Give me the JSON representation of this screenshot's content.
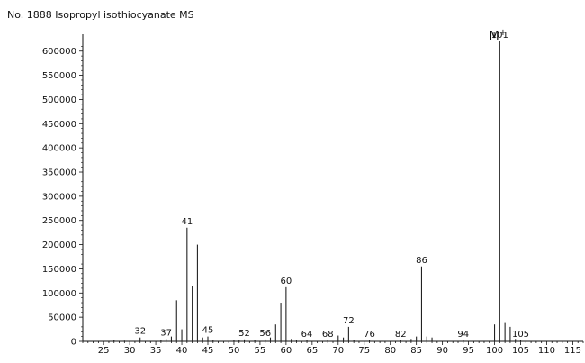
{
  "chart_data": {
    "type": "bar",
    "title": "No. 1888 Isopropyl isothiocyanate MS",
    "annotation": "M+",
    "annotation_mz": 101,
    "xlim": [
      21,
      117
    ],
    "ylim": [
      0,
      620000
    ],
    "x_ticks": [
      25,
      30,
      35,
      40,
      45,
      50,
      55,
      60,
      65,
      70,
      75,
      80,
      85,
      90,
      95,
      100,
      105,
      110,
      115
    ],
    "y_ticks": [
      0,
      50000,
      100000,
      150000,
      200000,
      250000,
      300000,
      350000,
      400000,
      450000,
      500000,
      550000,
      600000
    ],
    "peaks": [
      {
        "mz": 27,
        "intensity": 2000
      },
      {
        "mz": 29,
        "intensity": 1500
      },
      {
        "mz": 32,
        "intensity": 8000,
        "label": "32"
      },
      {
        "mz": 36,
        "intensity": 3000
      },
      {
        "mz": 37,
        "intensity": 5000,
        "label": "37"
      },
      {
        "mz": 38,
        "intensity": 10000
      },
      {
        "mz": 39,
        "intensity": 85000
      },
      {
        "mz": 40,
        "intensity": 25000
      },
      {
        "mz": 41,
        "intensity": 235000,
        "label": "41"
      },
      {
        "mz": 42,
        "intensity": 115000
      },
      {
        "mz": 43,
        "intensity": 200000
      },
      {
        "mz": 44,
        "intensity": 8000
      },
      {
        "mz": 45,
        "intensity": 10000,
        "label": "45"
      },
      {
        "mz": 46,
        "intensity": 2000
      },
      {
        "mz": 50,
        "intensity": 2000
      },
      {
        "mz": 51,
        "intensity": 2500
      },
      {
        "mz": 52,
        "intensity": 4000,
        "label": "52"
      },
      {
        "mz": 54,
        "intensity": 2000
      },
      {
        "mz": 56,
        "intensity": 4000,
        "label": "56"
      },
      {
        "mz": 57,
        "intensity": 8000
      },
      {
        "mz": 58,
        "intensity": 35000
      },
      {
        "mz": 59,
        "intensity": 80000
      },
      {
        "mz": 60,
        "intensity": 112000,
        "label": "60"
      },
      {
        "mz": 61,
        "intensity": 5000
      },
      {
        "mz": 62,
        "intensity": 3000
      },
      {
        "mz": 64,
        "intensity": 2000,
        "label": "64"
      },
      {
        "mz": 68,
        "intensity": 2000,
        "label": "68"
      },
      {
        "mz": 70,
        "intensity": 12000
      },
      {
        "mz": 71,
        "intensity": 8000
      },
      {
        "mz": 72,
        "intensity": 30000,
        "label": "72"
      },
      {
        "mz": 73,
        "intensity": 3000
      },
      {
        "mz": 76,
        "intensity": 2000,
        "label": "76"
      },
      {
        "mz": 82,
        "intensity": 2000,
        "label": "82"
      },
      {
        "mz": 84,
        "intensity": 5000
      },
      {
        "mz": 85,
        "intensity": 10000
      },
      {
        "mz": 86,
        "intensity": 155000,
        "label": "86"
      },
      {
        "mz": 87,
        "intensity": 10000
      },
      {
        "mz": 88,
        "intensity": 8000
      },
      {
        "mz": 94,
        "intensity": 2000,
        "label": "94"
      },
      {
        "mz": 100,
        "intensity": 35000
      },
      {
        "mz": 101,
        "intensity": 620000,
        "label": "101"
      },
      {
        "mz": 102,
        "intensity": 38000
      },
      {
        "mz": 103,
        "intensity": 30000
      },
      {
        "mz": 104,
        "intensity": 5000
      },
      {
        "mz": 105,
        "intensity": 2000,
        "label": "105"
      }
    ]
  }
}
